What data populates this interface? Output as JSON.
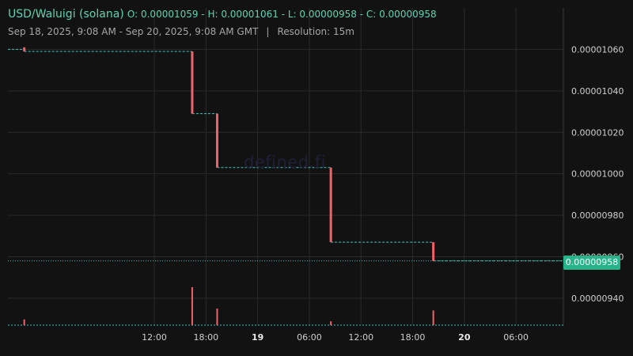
{
  "header": {
    "pair": "USD/Waluigi (solana)",
    "ohlc": "O: 0.00001059 - H: 0.00001061 - L: 0.00000958 - C: 0.00000958",
    "range": "Sep 18, 2025, 9:08 AM - Sep 20, 2025, 9:08 AM GMT",
    "separator": "|",
    "resolution": "Resolution: 15m"
  },
  "watermark": "defined.fi",
  "last_price_label": "0.00000958",
  "colors": {
    "background": "#121212",
    "grid": "#2a2a2a",
    "down_candle": "#f0626a",
    "flat_line": "#3ec7c0",
    "price_tag": "#26b58a",
    "volume": "#f0626a"
  },
  "chart_data": {
    "type": "candlestick",
    "title": "USD/Waluigi (solana)",
    "resolution": "15m",
    "x_tick_labels": [
      "12:00",
      "18:00",
      "19",
      "06:00",
      "12:00",
      "18:00",
      "20",
      "06:00"
    ],
    "x_tick_hours": [
      11.0,
      17.0,
      23.0,
      29.0,
      35.0,
      41.0,
      47.0,
      53.0
    ],
    "x_tick_bold": [
      false,
      false,
      true,
      false,
      false,
      false,
      true,
      false
    ],
    "y_tick_labels": [
      "0.00001060",
      "0.00001040",
      "0.00001020",
      "0.00001000",
      "0.00000980",
      "0.00000960",
      "0.00000940"
    ],
    "y_tick_values": [
      1.06e-05,
      1.04e-05,
      1.02e-05,
      1e-05,
      9.8e-06,
      9.6e-06,
      9.4e-06
    ],
    "y_range": [
      9.27e-06,
      1.08e-05
    ],
    "x_range_hours": [
      -6.0,
      58.5
    ],
    "last_price": 9.58e-06,
    "price_segments": [
      {
        "from_h": -6.0,
        "to_h": -4.1,
        "value": 1.06e-05
      },
      {
        "from_h": -4.1,
        "to_h": 15.4,
        "value": 1.059e-05
      },
      {
        "from_h": 15.4,
        "to_h": 18.3,
        "value": 1.029e-05
      },
      {
        "from_h": 18.3,
        "to_h": 31.5,
        "value": 1.003e-05
      },
      {
        "from_h": 31.5,
        "to_h": 43.4,
        "value": 9.67e-06
      },
      {
        "from_h": 43.4,
        "to_h": 58.5,
        "value": 9.58e-06
      }
    ],
    "down_candles": [
      {
        "t_h": -4.1,
        "open": 1.061e-05,
        "close": 1.059e-05
      },
      {
        "t_h": 15.4,
        "open": 1.059e-05,
        "close": 1.029e-05
      },
      {
        "t_h": 18.3,
        "open": 1.029e-05,
        "close": 1.003e-05
      },
      {
        "t_h": 31.5,
        "open": 1.003e-05,
        "close": 9.67e-06
      },
      {
        "t_h": 43.4,
        "open": 9.67e-06,
        "close": 9.58e-06
      }
    ],
    "volume_bars": [
      {
        "t_h": -4.1,
        "v": 0.12
      },
      {
        "t_h": 15.4,
        "v": 0.8
      },
      {
        "t_h": 18.3,
        "v": 0.35
      },
      {
        "t_h": 31.5,
        "v": 0.08
      },
      {
        "t_h": 43.4,
        "v": 0.31
      }
    ]
  }
}
